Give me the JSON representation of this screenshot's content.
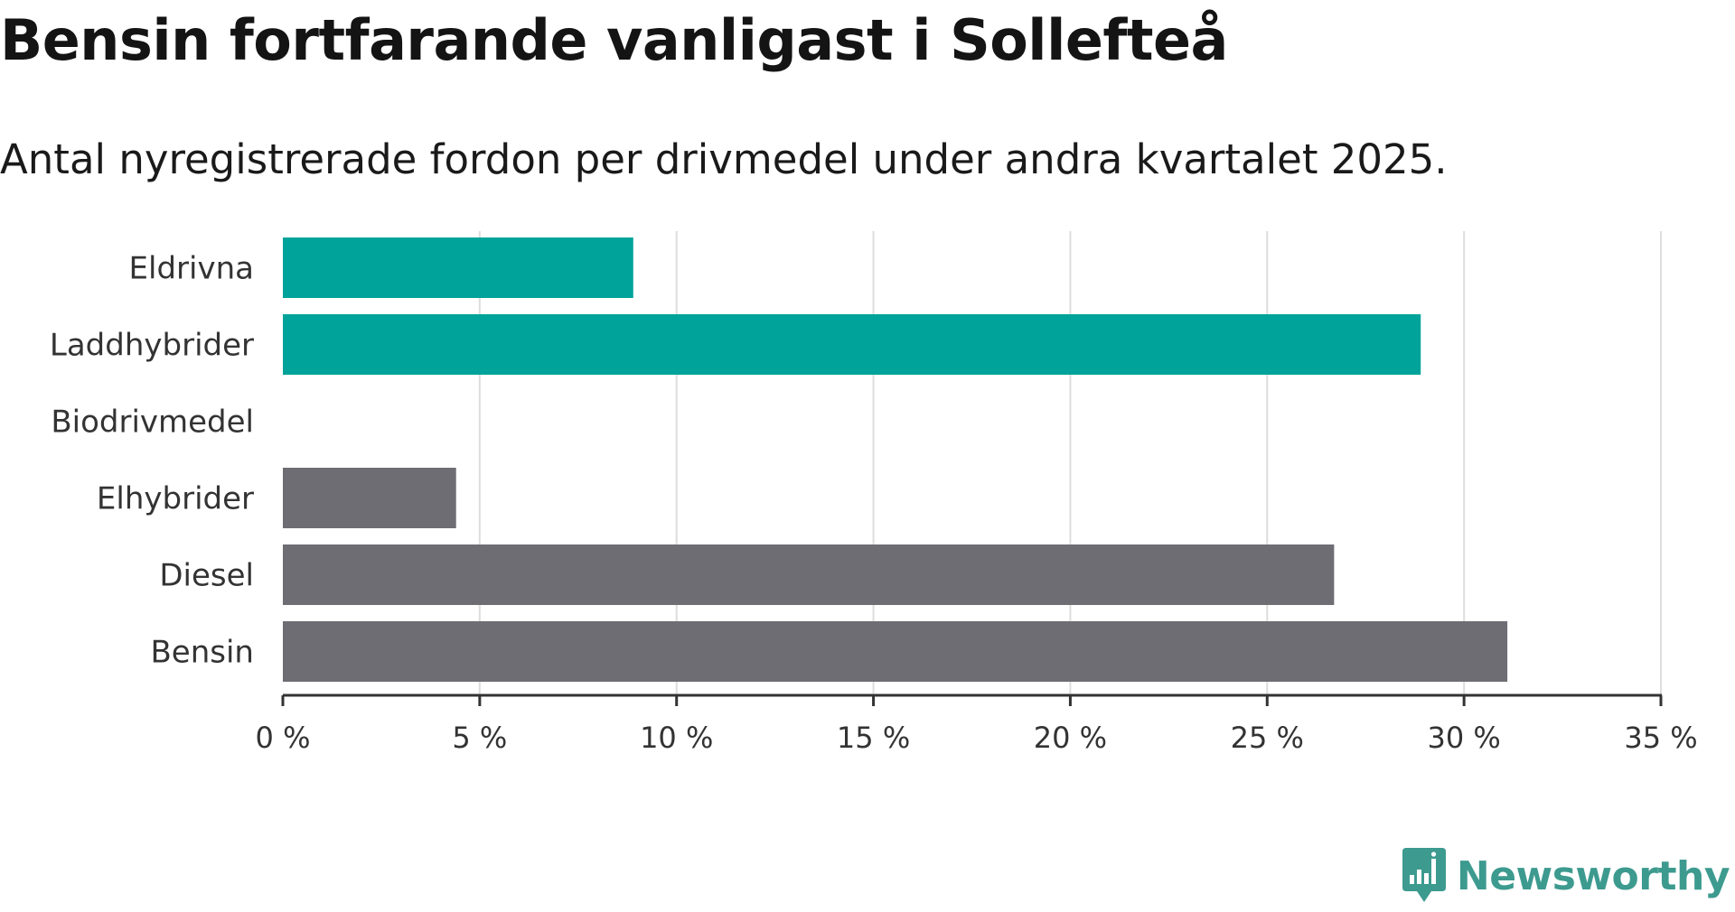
{
  "chart_data": {
    "type": "bar",
    "orientation": "horizontal",
    "title": "Bensin fortfarande vanligast i Sollefteå",
    "subtitle": "Antal nyregistrerade fordon per drivmedel under andra kvartalet 2025.",
    "categories": [
      "Eldrivna",
      "Laddhybrider",
      "Biodrivmedel",
      "Elhybrider",
      "Diesel",
      "Bensin"
    ],
    "values": [
      8.9,
      28.9,
      0,
      4.4,
      26.7,
      31.1
    ],
    "bar_colors": [
      "#00a39a",
      "#00a39a",
      "#00a39a",
      "#6e6d73",
      "#6e6d73",
      "#6e6d73"
    ],
    "xlim": [
      0,
      35
    ],
    "xticks": [
      0,
      5,
      10,
      15,
      20,
      25,
      30,
      35
    ],
    "xtick_labels": [
      "0 %",
      "5 %",
      "10 %",
      "15 %",
      "20 %",
      "25 %",
      "30 %",
      "35 %"
    ],
    "xlabel": "",
    "ylabel": "",
    "grid": true,
    "grid_color": "#dddddd",
    "legend": "none"
  },
  "brand": {
    "name": "Newsworthy",
    "icon": "newsworthy-logo-icon",
    "color": "#3d9a8f"
  }
}
